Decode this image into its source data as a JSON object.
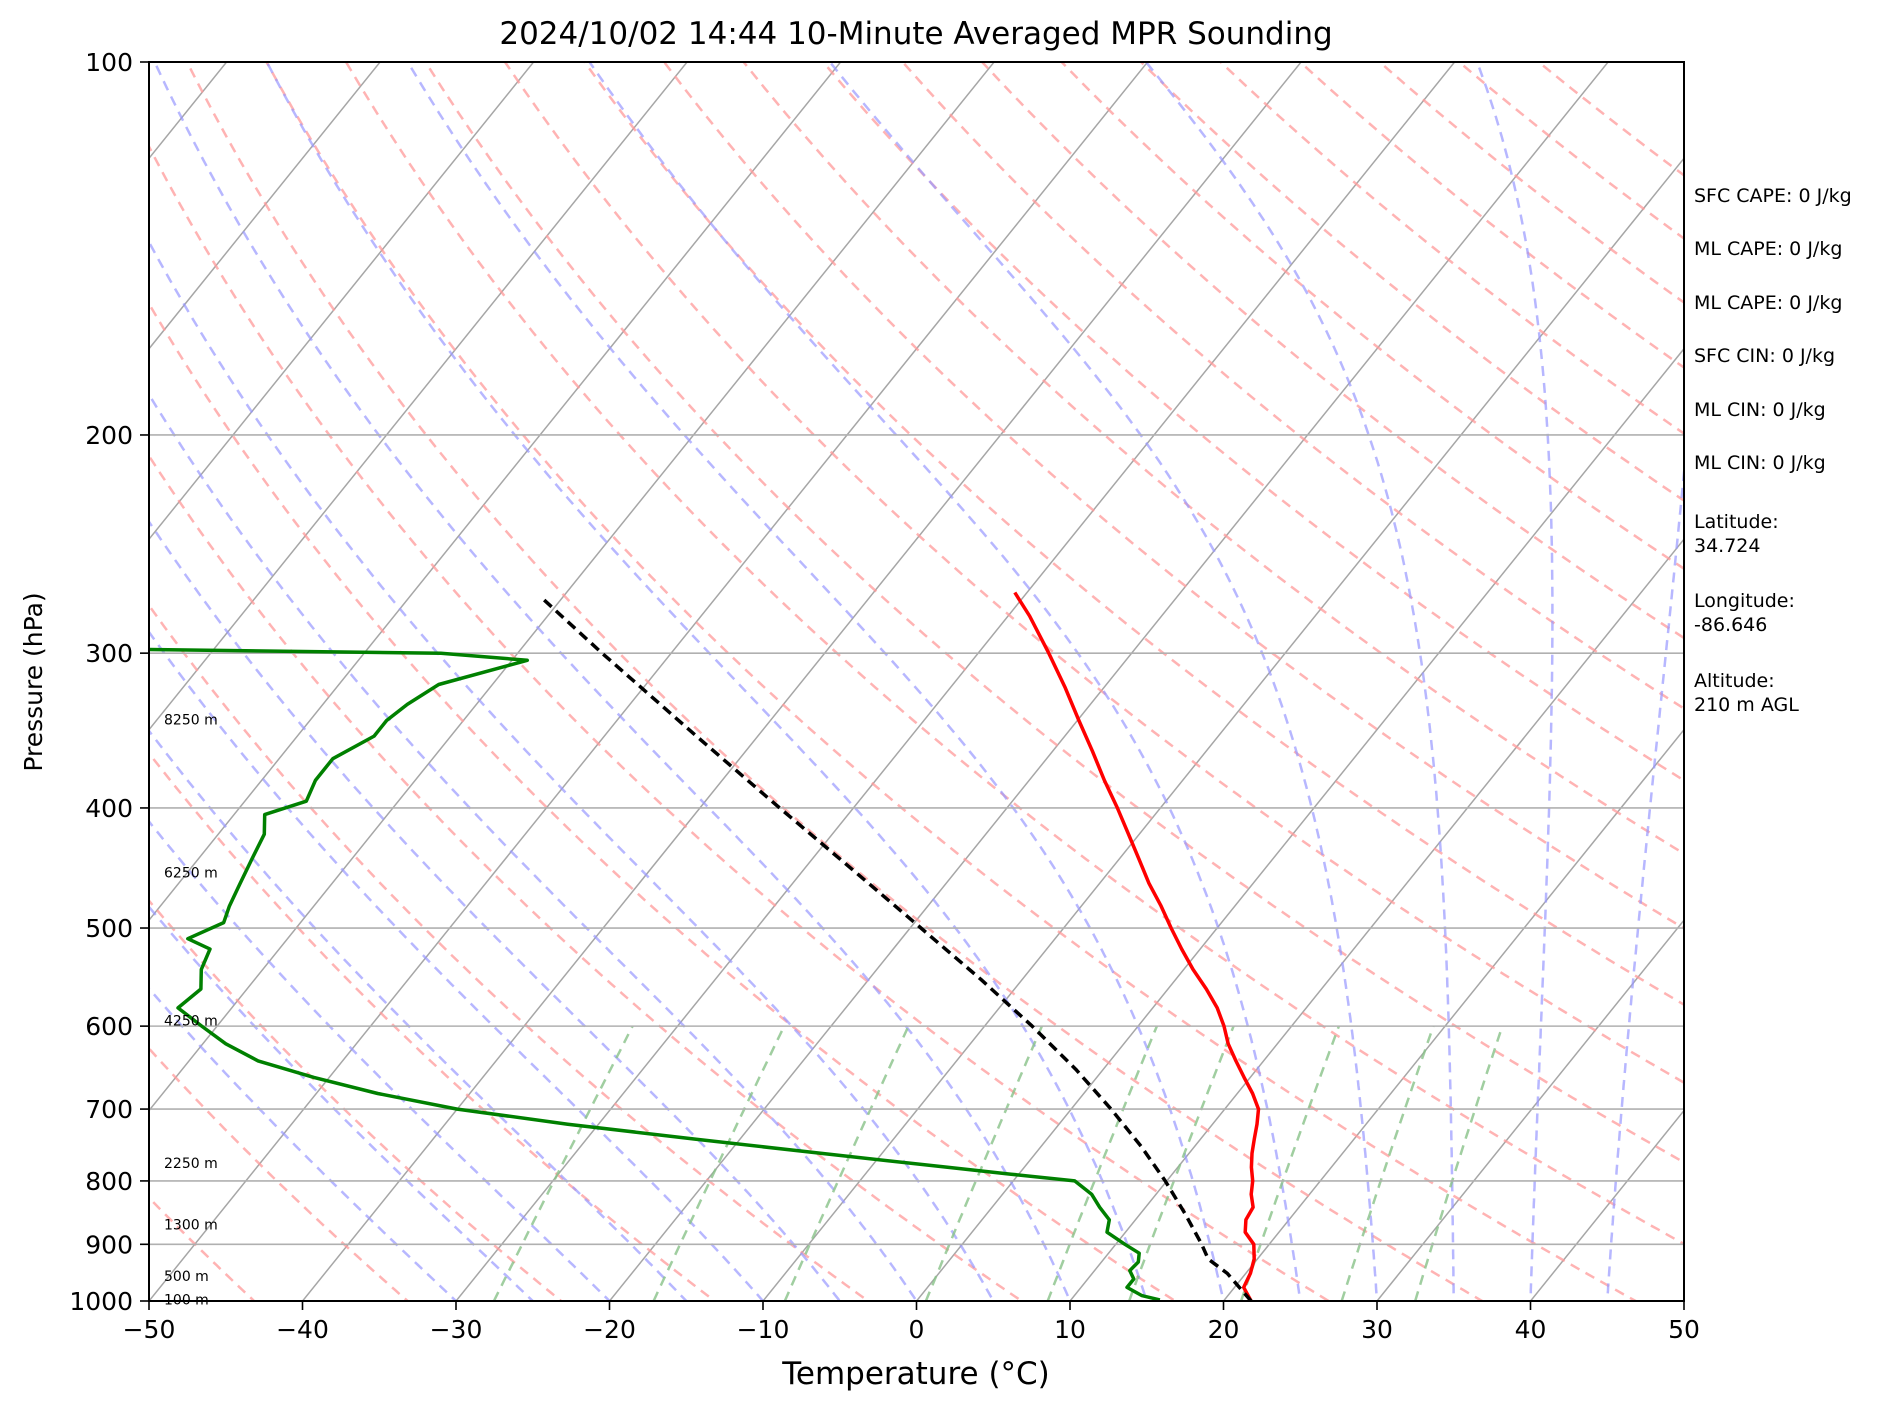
{
  "chart_data": {
    "type": "line",
    "title": "2024/10/02 14:44 10-Minute Averaged MPR Sounding",
    "xlabel": "Temperature (°C)",
    "ylabel": "Pressure (hPa)",
    "xlim": [
      -50,
      50
    ],
    "ylim": [
      1000,
      100
    ],
    "y_scale": "log",
    "x_ticks": [
      "−50",
      "−40",
      "−30",
      "−20",
      "−10",
      "0",
      "10",
      "20",
      "30",
      "40",
      "50"
    ],
    "y_ticks": [
      "100",
      "200",
      "300",
      "400",
      "500",
      "600",
      "700",
      "800",
      "900",
      "1000"
    ],
    "grid": "horizontal at labeled pressures",
    "diagram": "Skew-T log-P",
    "background_lines": {
      "dry_adiabats_color": "#ff9999",
      "moist_adiabats_color": "#9999ff",
      "mixing_ratio_color": "#88c288",
      "isotherms_color": "#a6a6a6"
    },
    "series": [
      {
        "color": "#ff0000",
        "style": "solid",
        "pressure": [
          1000,
          975,
          950,
          925,
          900,
          880,
          860,
          840,
          820,
          800,
          780,
          760,
          740,
          720,
          700,
          680,
          660,
          640,
          620,
          600,
          580,
          560,
          540,
          520,
          500,
          480,
          460,
          440,
          420,
          400,
          380,
          360,
          340,
          320,
          300,
          280,
          268
        ],
        "temperature": [
          21.8,
          20.6,
          20.3,
          19.8,
          19.0,
          17.8,
          17.2,
          17.0,
          16.2,
          15.6,
          14.8,
          14.1,
          13.5,
          12.9,
          12.2,
          11.0,
          9.6,
          8.2,
          6.8,
          5.6,
          4.2,
          2.5,
          0.6,
          -1.2,
          -3.0,
          -4.8,
          -6.8,
          -8.7,
          -10.7,
          -12.8,
          -15.1,
          -17.4,
          -19.9,
          -22.5,
          -25.4,
          -28.6,
          -30.8
        ]
      },
      {
        "color": "#000000",
        "style": "dashed",
        "pressure": [
          1000,
          950,
          925,
          900,
          850,
          800,
          750,
          700,
          650,
          600,
          550,
          500,
          450,
          400,
          350,
          300,
          270
        ],
        "temperature": [
          21.8,
          18.8,
          16.8,
          15.6,
          12.9,
          9.9,
          6.5,
          2.6,
          -1.8,
          -6.9,
          -12.7,
          -19.3,
          -26.6,
          -34.8,
          -44.0,
          -54.5,
          -61.5
        ]
      },
      {
        "color": "#008000",
        "style": "solid",
        "pressure": [
          998,
          990,
          975,
          960,
          945,
          930,
          915,
          900,
          880,
          860,
          840,
          820,
          800,
          790,
          780,
          760,
          740,
          720,
          700,
          680,
          660,
          640,
          620,
          600,
          580,
          560,
          540,
          520,
          510,
          495,
          480,
          460,
          440,
          420,
          405,
          395,
          380,
          365,
          350,
          340,
          330,
          318,
          304,
          300,
          296
        ],
        "temperature": [
          15.8,
          14.4,
          13.0,
          13.0,
          12.3,
          12.4,
          12.0,
          10.6,
          8.8,
          8.3,
          7.0,
          5.8,
          4.0,
          -0.5,
          -5.0,
          -14.0,
          -23.0,
          -32.0,
          -40.0,
          -46.0,
          -51.0,
          -55.5,
          -58.5,
          -61.0,
          -63.5,
          -63.0,
          -64.0,
          -64.5,
          -66.5,
          -65.0,
          -65.5,
          -66.0,
          -66.5,
          -67.0,
          -68.0,
          -66.0,
          -66.5,
          -66.5,
          -65.0,
          -65.0,
          -64.5,
          -63.5,
          -59.0,
          -65.0,
          -103.0
        ]
      }
    ],
    "height_labels": [
      {
        "text": "100 m",
        "pressure": 999
      },
      {
        "text": "500 m",
        "pressure": 956
      },
      {
        "text": "1300 m",
        "pressure": 869
      },
      {
        "text": "2250 m",
        "pressure": 775
      },
      {
        "text": "4250 m",
        "pressure": 595
      },
      {
        "text": "6250 m",
        "pressure": 452
      },
      {
        "text": "8250 m",
        "pressure": 340
      }
    ],
    "side_info": [
      "SFC CAPE: 0 J/kg",
      "ML CAPE: 0 J/kg",
      "ML CAPE: 0 J/kg",
      "SFC CIN: 0 J/kg",
      "ML CIN: 0 J/kg",
      "ML CIN: 0 J/kg",
      "Latitude:\n34.724",
      "Longitude:\n-86.646",
      "Altitude:\n210 m AGL"
    ]
  }
}
